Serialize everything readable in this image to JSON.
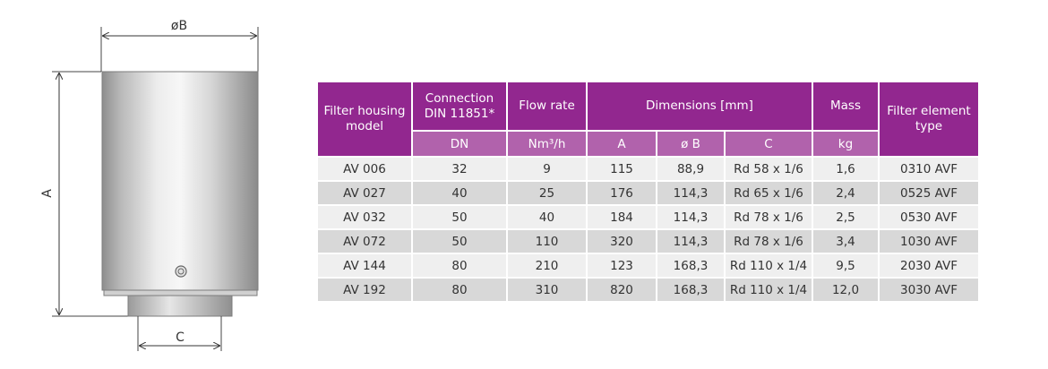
{
  "drawing": {
    "label_b": "øB",
    "label_a": "A",
    "label_c": "C"
  },
  "table": {
    "headers": {
      "model": "Filter housing model",
      "connection": "Connection DIN 11851*",
      "flow": "Flow rate",
      "dimensions": "Dimensions [mm]",
      "mass": "Mass",
      "element": "Filter element type"
    },
    "units": {
      "dn": "DN",
      "flow": "Nm³/h",
      "a": "A",
      "b": "ø B",
      "c": "C",
      "mass": "kg"
    },
    "rows": [
      {
        "model": "AV 006",
        "dn": "32",
        "flow": "9",
        "a": "115",
        "b": "88,9",
        "c": "Rd 58 x 1/6",
        "mass": "1,6",
        "element": "0310 AVF"
      },
      {
        "model": "AV 027",
        "dn": "40",
        "flow": "25",
        "a": "176",
        "b": "114,3",
        "c": "Rd 65 x 1/6",
        "mass": "2,4",
        "element": "0525 AVF"
      },
      {
        "model": "AV 032",
        "dn": "50",
        "flow": "40",
        "a": "184",
        "b": "114,3",
        "c": "Rd 78 x 1/6",
        "mass": "2,5",
        "element": "0530 AVF"
      },
      {
        "model": "AV 072",
        "dn": "50",
        "flow": "110",
        "a": "320",
        "b": "114,3",
        "c": "Rd 78 x 1/6",
        "mass": "3,4",
        "element": "1030 AVF"
      },
      {
        "model": "AV 144",
        "dn": "80",
        "flow": "210",
        "a": "123",
        "b": "168,3",
        "c": "Rd 110 x 1/4",
        "mass": "9,5",
        "element": "2030 AVF"
      },
      {
        "model": "AV 192",
        "dn": "80",
        "flow": "310",
        "a": "820",
        "b": "168,3",
        "c": "Rd 110 x 1/4",
        "mass": "12,0",
        "element": "3030 AVF"
      }
    ]
  }
}
